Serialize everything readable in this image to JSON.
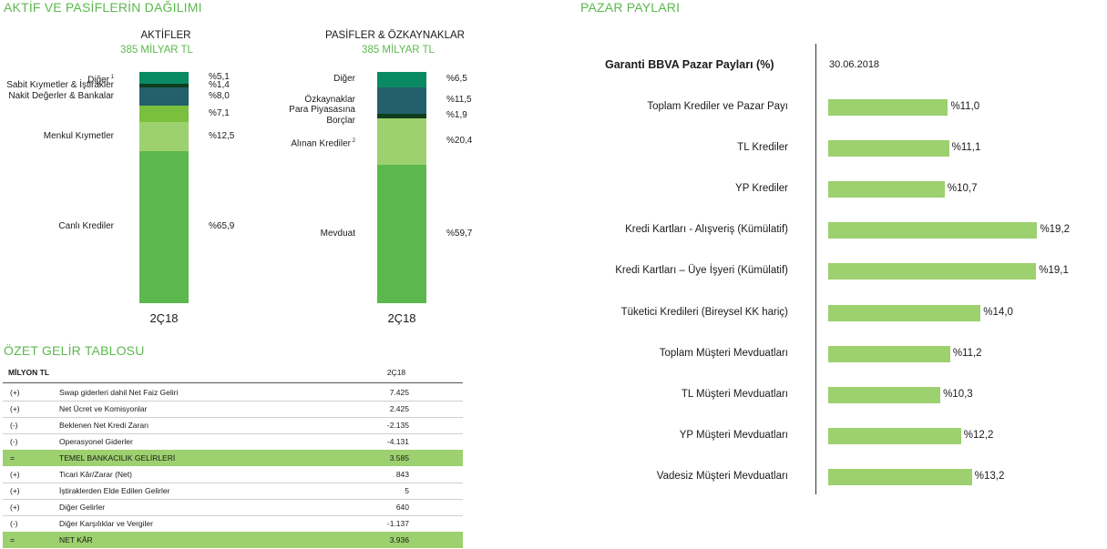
{
  "titles": {
    "assets_liabilities": "AKTİF VE PASİFLERİN DAĞILIMI",
    "market_share": "PAZAR PAYLARI",
    "income_statement": "ÖZET GELİR TABLOSU"
  },
  "assets": {
    "heading": "AKTİFLER",
    "total": "385 MİLYAR TL",
    "period": "2Ç18",
    "segments": [
      {
        "label": "Canlı Krediler",
        "sup": "",
        "pct_label": "%65,9",
        "value": 65.9,
        "color": "#5cb84e"
      },
      {
        "label": "Menkul Kıymetler",
        "sup": "",
        "pct_label": "%12,5",
        "value": 12.5,
        "color": "#9dd06e"
      },
      {
        "label": "",
        "sup": "",
        "pct_label": "%7,1",
        "value": 7.1,
        "color": "#7bbf3f"
      },
      {
        "label": "Nakit Değerler & Bankalar",
        "sup": "",
        "pct_label": "%8,0",
        "value": 8.0,
        "color": "#23606b"
      },
      {
        "label": "Sabit Kıymetler & İştirakler",
        "sup": "",
        "pct_label": "%1,4",
        "value": 1.4,
        "color": "#0f3d1c"
      },
      {
        "label": "Diğer",
        "sup": "1",
        "pct_label": "%5,1",
        "value": 5.1,
        "color": "#0a8a63"
      }
    ]
  },
  "liabilities": {
    "heading": "PASİFLER & ÖZKAYNAKLAR",
    "total": "385 MİLYAR TL",
    "period": "2Ç18",
    "segments": [
      {
        "label": "Mevduat",
        "sup": "",
        "pct_label": "%59,7",
        "value": 59.7,
        "color": "#5cb84e"
      },
      {
        "label": "Alınan Krediler",
        "sup": "2",
        "pct_label": "%20,4",
        "value": 20.4,
        "color": "#9dd06e"
      },
      {
        "label": "Para  Piyasasına\nBorçlar",
        "sup": "",
        "pct_label": "%1,9",
        "value": 1.9,
        "color": "#0f3d1c"
      },
      {
        "label": "Özkaynaklar",
        "sup": "",
        "pct_label": "%11,5",
        "value": 11.5,
        "color": "#23606b"
      },
      {
        "label": "Diğer",
        "sup": "",
        "pct_label": "%6,5",
        "value": 6.5,
        "color": "#0a8a63"
      }
    ]
  },
  "income": {
    "unit_header": "MİLYON TL",
    "period_header": "2Ç18",
    "rows": [
      {
        "sign": "(+)",
        "desc": "Swap giderleri dahil Net Faiz Geliri",
        "value": "7.425",
        "highlight": false
      },
      {
        "sign": "(+)",
        "desc": "Net Ücret ve Komisyonlar",
        "value": "2.425",
        "highlight": false
      },
      {
        "sign": "(-)",
        "desc": "Beklenen Net Kredi Zararı",
        "value": "-2.135",
        "highlight": false
      },
      {
        "sign": "(-)",
        "desc": "Operasyonel Giderler",
        "value": "-4.131",
        "highlight": false
      },
      {
        "sign": "=",
        "desc": "TEMEL BANKACILIK GELİRLERİ",
        "value": "3.585",
        "highlight": true
      },
      {
        "sign": "(+)",
        "desc": "Ticari Kâr/Zarar (Net)",
        "value": "843",
        "highlight": false
      },
      {
        "sign": "(+)",
        "desc": "İştiraklerden Elde Edilen Gelirler",
        "value": "5",
        "highlight": false
      },
      {
        "sign": "(+)",
        "desc": "Diğer Gelirler",
        "value": "640",
        "highlight": false
      },
      {
        "sign": "(-)",
        "desc": "Diğer Karşılıklar ve Vergiler",
        "value": "-1.137",
        "highlight": false
      },
      {
        "sign": "=",
        "desc": "NET KÂR",
        "value": "3.936",
        "highlight": true
      }
    ]
  },
  "chart_data": [
    {
      "type": "bar",
      "stacked": true,
      "title": "AKTİFLER",
      "subtitle": "385 MİLYAR TL",
      "categories": [
        "2Ç18"
      ],
      "series": [
        {
          "name": "Canlı Krediler",
          "values": [
            65.9
          ]
        },
        {
          "name": "Menkul Kıymetler",
          "values": [
            12.5
          ]
        },
        {
          "name": "",
          "values": [
            7.1
          ]
        },
        {
          "name": "Nakit Değerler & Bankalar",
          "values": [
            8.0
          ]
        },
        {
          "name": "Sabit Kıymetler & İştirakler",
          "values": [
            1.4
          ]
        },
        {
          "name": "Diğer",
          "values": [
            5.1
          ]
        }
      ]
    },
    {
      "type": "bar",
      "stacked": true,
      "title": "PASİFLER & ÖZKAYNAKLAR",
      "subtitle": "385 MİLYAR TL",
      "categories": [
        "2Ç18"
      ],
      "series": [
        {
          "name": "Mevduat",
          "values": [
            59.7
          ]
        },
        {
          "name": "Alınan Krediler",
          "values": [
            20.4
          ]
        },
        {
          "name": "Para Piyasasına Borçlar",
          "values": [
            1.9
          ]
        },
        {
          "name": "Özkaynaklar",
          "values": [
            11.5
          ]
        },
        {
          "name": "Diğer",
          "values": [
            6.5
          ]
        }
      ]
    },
    {
      "type": "bar",
      "orientation": "horizontal",
      "title": "Garanti BBVA Pazar Payları (%)",
      "date": "30.06.2018",
      "bar_color": "#9dd06e",
      "categories": [
        "Toplam Krediler ve Pazar Payı",
        "TL Krediler",
        "YP Krediler",
        "Kredi Kartları - Alışveriş (Kümülatif)",
        "Kredi Kartları – Üye İşyeri (Kümülatif)",
        "Tüketici Kredileri (Bireysel KK hariç)",
        "Toplam Müşteri Mevduatları",
        "TL Müşteri Mevduatları",
        "YP Müşteri Mevduatları",
        "Vadesiz Müşteri Mevduatları"
      ],
      "values": [
        11.0,
        11.1,
        10.7,
        19.2,
        19.1,
        14.0,
        11.2,
        10.3,
        12.2,
        13.2
      ],
      "value_labels": [
        "%11,0",
        "%11,1",
        "%10,7",
        "%19,2",
        "%19,1",
        "%14,0",
        "%11,2",
        "%10,3",
        "%12,2",
        "%13,2"
      ]
    }
  ]
}
